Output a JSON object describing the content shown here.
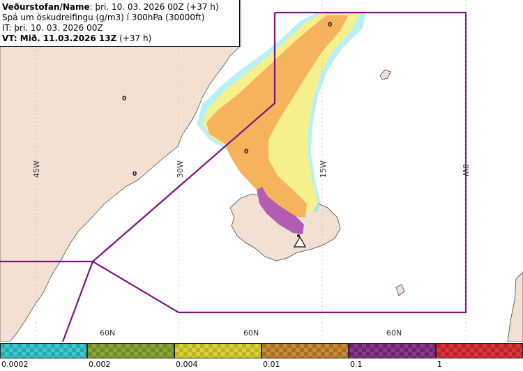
{
  "header": {
    "line1_bold": "Veðurstofan/Name",
    "line1_rest": ": þri. 10. 03. 2026 00Z (+37 h)",
    "line2": "Spá um öskudreifingu (g/m3) í 300hPa (30000ft)",
    "line3": "IT: þri. 10. 03. 2026 00Z",
    "line4_bold": "VT: Mið. 11.03.2026 13Z",
    "line4_rest": " (+37 h)"
  },
  "map": {
    "meridian_labels": [
      "45W",
      "30W",
      "15W",
      "0W"
    ],
    "parallel_labels": [
      "60N",
      "60N",
      "60N"
    ],
    "zero_markers": [
      "0",
      "0",
      "0",
      "0"
    ],
    "colors": {
      "sea": "#ffffff",
      "land": "#f2e0d3",
      "coast": "#444444",
      "boundary": "#7a1282",
      "ash_orange": "#f7b35c",
      "ash_yellow": "#f6f08c",
      "ash_cyan": "#7ee3ea",
      "ash_purple": "#b25cb3",
      "grid": "#aaaaaa"
    },
    "volcano_icon": "warning-triangle-icon"
  },
  "legend": {
    "ticks": [
      "0.0002",
      "0.002",
      "0.004",
      "0.01",
      "0.1",
      "1"
    ],
    "swatches": [
      {
        "color": "#3cc8cc",
        "alt": "#2aa9ad"
      },
      {
        "color": "#8aa63a",
        "alt": "#6f8c28"
      },
      {
        "color": "#d9d13a",
        "alt": "#bdb425"
      },
      {
        "color": "#c98a3a",
        "alt": "#a86d24"
      },
      {
        "color": "#8a3a8a",
        "alt": "#6d2370"
      },
      {
        "color": "#d9363a",
        "alt": "#b8232a"
      }
    ]
  }
}
